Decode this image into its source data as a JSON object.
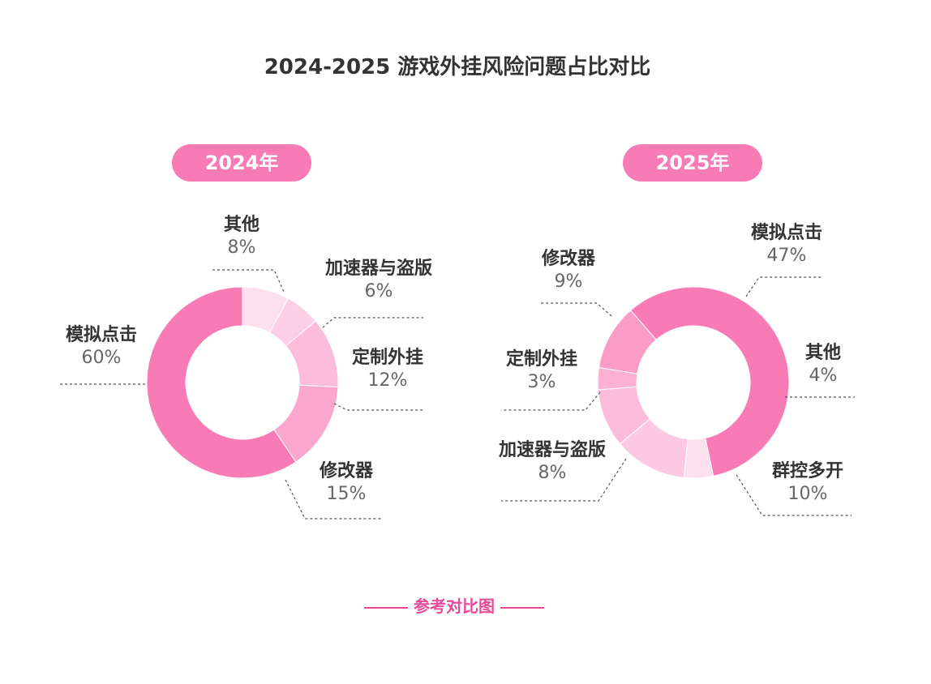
{
  "title": "2024-2025 游戏外挂风险问题占比对比",
  "footer_label": "参考对比图",
  "chart_data": [
    {
      "type": "pie",
      "year_label": "2024年",
      "slices": [
        {
          "name": "其他",
          "value": 8,
          "label": "8%",
          "color": "#fde0ee"
        },
        {
          "name": "加速器与盗版",
          "value": 6,
          "label": "6%",
          "color": "#fccfe4"
        },
        {
          "name": "定制外挂",
          "value": 12,
          "label": "12%",
          "color": "#fcbddb"
        },
        {
          "name": "修改器",
          "value": 15,
          "label": "15%",
          "color": "#fba6cf"
        },
        {
          "name": "模拟点击",
          "value": 60,
          "label": "60%",
          "color": "#f97bb5"
        }
      ]
    },
    {
      "type": "pie",
      "year_label": "2025年",
      "slices": [
        {
          "name": "模拟点击",
          "value": 47,
          "label": "47%",
          "color": "#f97bb5"
        },
        {
          "name": "其他",
          "value": 4,
          "label": "4%",
          "color": "#fde0ee"
        },
        {
          "name": "群控多开",
          "value": 10,
          "label": "10%",
          "color": "#fcc9e1"
        },
        {
          "name": "加速器与盗版",
          "value": 8,
          "label": "8%",
          "color": "#fcbddb"
        },
        {
          "name": "定制外挂",
          "value": 3,
          "label": "3%",
          "color": "#fbb0d4"
        },
        {
          "name": "修改器",
          "value": 9,
          "label": "9%",
          "color": "#fa9bc8"
        }
      ]
    }
  ]
}
